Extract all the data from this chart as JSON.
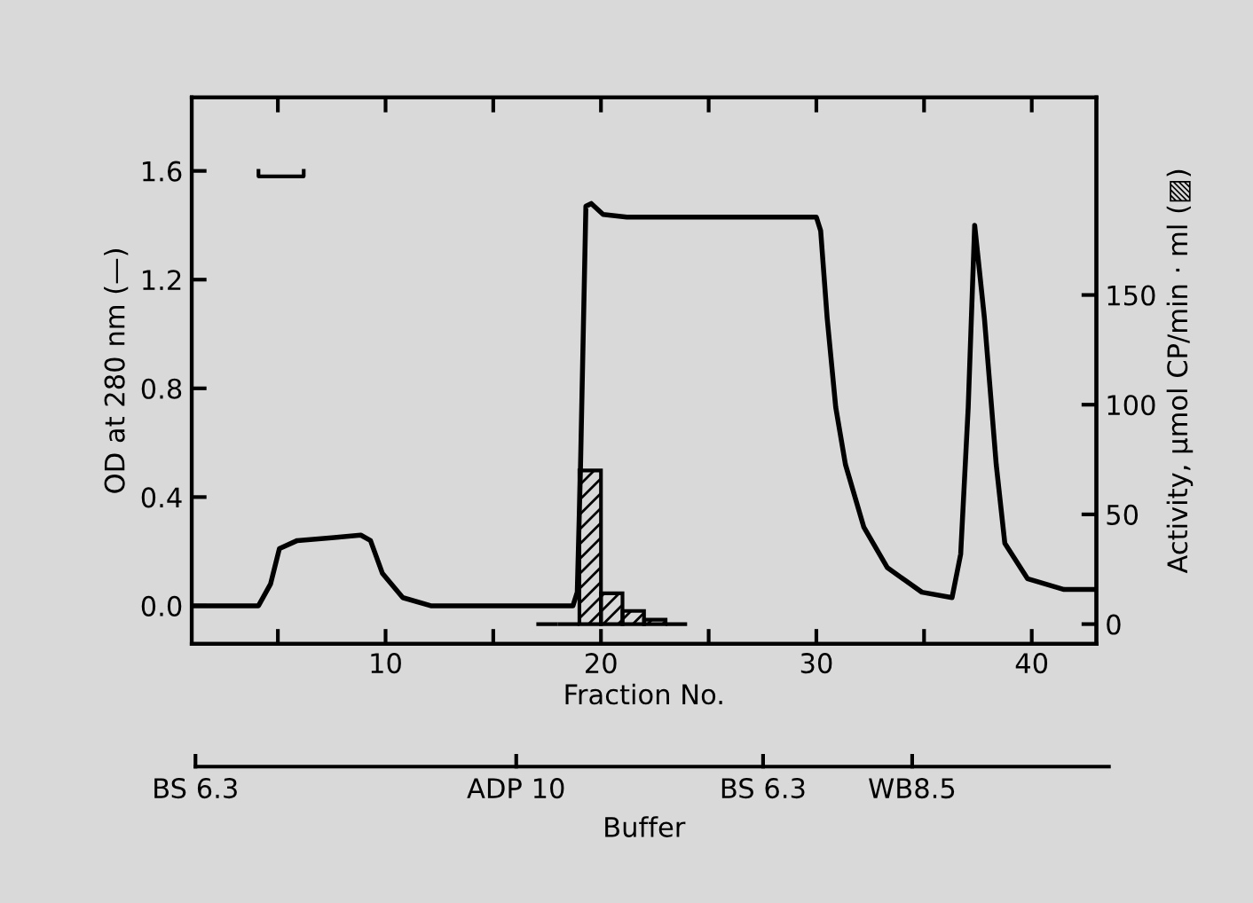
{
  "chart_data": {
    "type": "line",
    "xlabel": "Fraction No.",
    "ylabel": "OD at 280 nm (—)",
    "y2label": "Activity, µmol CP/min · ml (▨)",
    "xlim": [
      1,
      43
    ],
    "xticks": [
      {
        "value": 5,
        "label": null
      },
      10,
      {
        "value": 15,
        "label": null
      },
      20,
      {
        "value": 25,
        "label": null
      },
      30,
      {
        "value": 35,
        "label": null
      },
      40
    ],
    "ylim": [
      -0.14,
      1.87
    ],
    "yticks": [
      {
        "value": 0,
        "label": "0.0"
      },
      0.4,
      0.8,
      1.2,
      1.6
    ],
    "y2lim": [
      -9,
      240
    ],
    "y2ticks": [
      0,
      50,
      100,
      150
    ],
    "annotations": [
      "BS 6.3",
      "ADP 10",
      "BS 6.3",
      "WB8.5",
      "Buffer"
    ],
    "grid": false,
    "legend": false,
    "marker": "none",
    "line_style": "solid",
    "series": [
      {
        "color": "#000000",
        "x": [
          1.1,
          4.1,
          4.66,
          5.07,
          5.9,
          7.5,
          8.85,
          9.3,
          9.85,
          10.8,
          12.1,
          18.7,
          18.9,
          19.05,
          19.3,
          19.55,
          20.1,
          21.2,
          30.0,
          30.2,
          30.5,
          30.9,
          31.35,
          32.2,
          33.3,
          34.9,
          36.3,
          36.7,
          37.05,
          37.35,
          37.8,
          38.35,
          38.75,
          39.8,
          41.5,
          42.9
        ],
        "values": [
          0.0,
          0.0,
          0.08,
          0.21,
          0.24,
          0.25,
          0.26,
          0.24,
          0.12,
          0.03,
          0.0,
          0.0,
          0.05,
          0.51,
          1.47,
          1.48,
          1.44,
          1.43,
          1.43,
          1.38,
          1.06,
          0.73,
          0.52,
          0.29,
          0.14,
          0.05,
          0.03,
          0.19,
          0.73,
          1.4,
          1.06,
          0.52,
          0.23,
          0.1,
          0.06,
          0.06
        ]
      },
      {
        "type": "bar",
        "axis": "y2",
        "color": "#000000",
        "x": [
          17.5,
          18.5,
          19.5,
          20.5,
          21.5,
          22.5,
          23.5
        ],
        "values": [
          0,
          0,
          70,
          14,
          6,
          2,
          0
        ]
      }
    ]
  }
}
